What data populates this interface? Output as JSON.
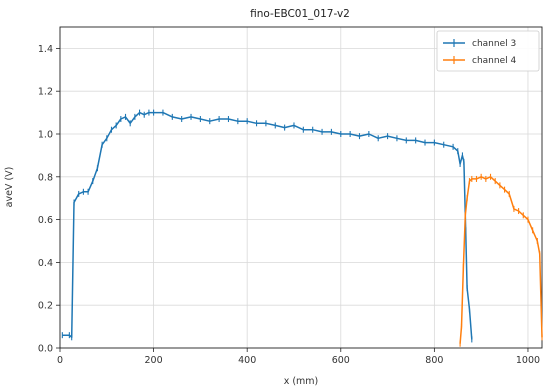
{
  "chart_data": {
    "type": "line",
    "title": "fino-EBC01_017-v2",
    "xlabel": "x (mm)",
    "ylabel": "aveV (V)",
    "xlim": [
      0,
      1030
    ],
    "ylim": [
      0,
      1.5
    ],
    "xticks": [
      0,
      200,
      400,
      600,
      800,
      1000
    ],
    "yticks": [
      0.0,
      0.2,
      0.4,
      0.6,
      0.8,
      1.0,
      1.2,
      1.4
    ],
    "grid": true,
    "legend_position": "top-right",
    "series": [
      {
        "name": "channel 3",
        "color": "#1f77b4",
        "x": [
          5,
          20,
          25,
          30,
          40,
          50,
          60,
          70,
          80,
          90,
          100,
          110,
          120,
          130,
          140,
          150,
          160,
          170,
          180,
          190,
          200,
          220,
          240,
          260,
          280,
          300,
          320,
          340,
          360,
          380,
          400,
          420,
          440,
          460,
          480,
          500,
          520,
          540,
          560,
          580,
          600,
          620,
          640,
          660,
          680,
          700,
          720,
          740,
          760,
          780,
          800,
          820,
          840,
          850,
          855,
          860,
          863,
          867,
          870,
          875,
          880
        ],
        "y": [
          0.06,
          0.06,
          0.05,
          0.68,
          0.72,
          0.73,
          0.73,
          0.78,
          0.84,
          0.95,
          0.98,
          1.02,
          1.04,
          1.07,
          1.08,
          1.05,
          1.08,
          1.1,
          1.09,
          1.1,
          1.1,
          1.1,
          1.08,
          1.07,
          1.08,
          1.07,
          1.06,
          1.07,
          1.07,
          1.06,
          1.06,
          1.05,
          1.05,
          1.04,
          1.03,
          1.04,
          1.02,
          1.02,
          1.01,
          1.01,
          1.0,
          1.0,
          0.99,
          1.0,
          0.98,
          0.99,
          0.98,
          0.97,
          0.97,
          0.96,
          0.96,
          0.95,
          0.94,
          0.92,
          0.86,
          0.9,
          0.87,
          0.55,
          0.28,
          0.18,
          0.04
        ]
      },
      {
        "name": "channel 4",
        "color": "#ff7f0e",
        "x": [
          855,
          858,
          862,
          866,
          870,
          875,
          880,
          890,
          900,
          910,
          920,
          930,
          940,
          950,
          960,
          970,
          980,
          990,
          1000,
          1010,
          1020,
          1025,
          1030
        ],
        "y": [
          0.02,
          0.1,
          0.38,
          0.62,
          0.7,
          0.78,
          0.79,
          0.79,
          0.8,
          0.79,
          0.8,
          0.78,
          0.76,
          0.74,
          0.72,
          0.65,
          0.64,
          0.62,
          0.6,
          0.55,
          0.5,
          0.44,
          0.05
        ]
      }
    ]
  }
}
